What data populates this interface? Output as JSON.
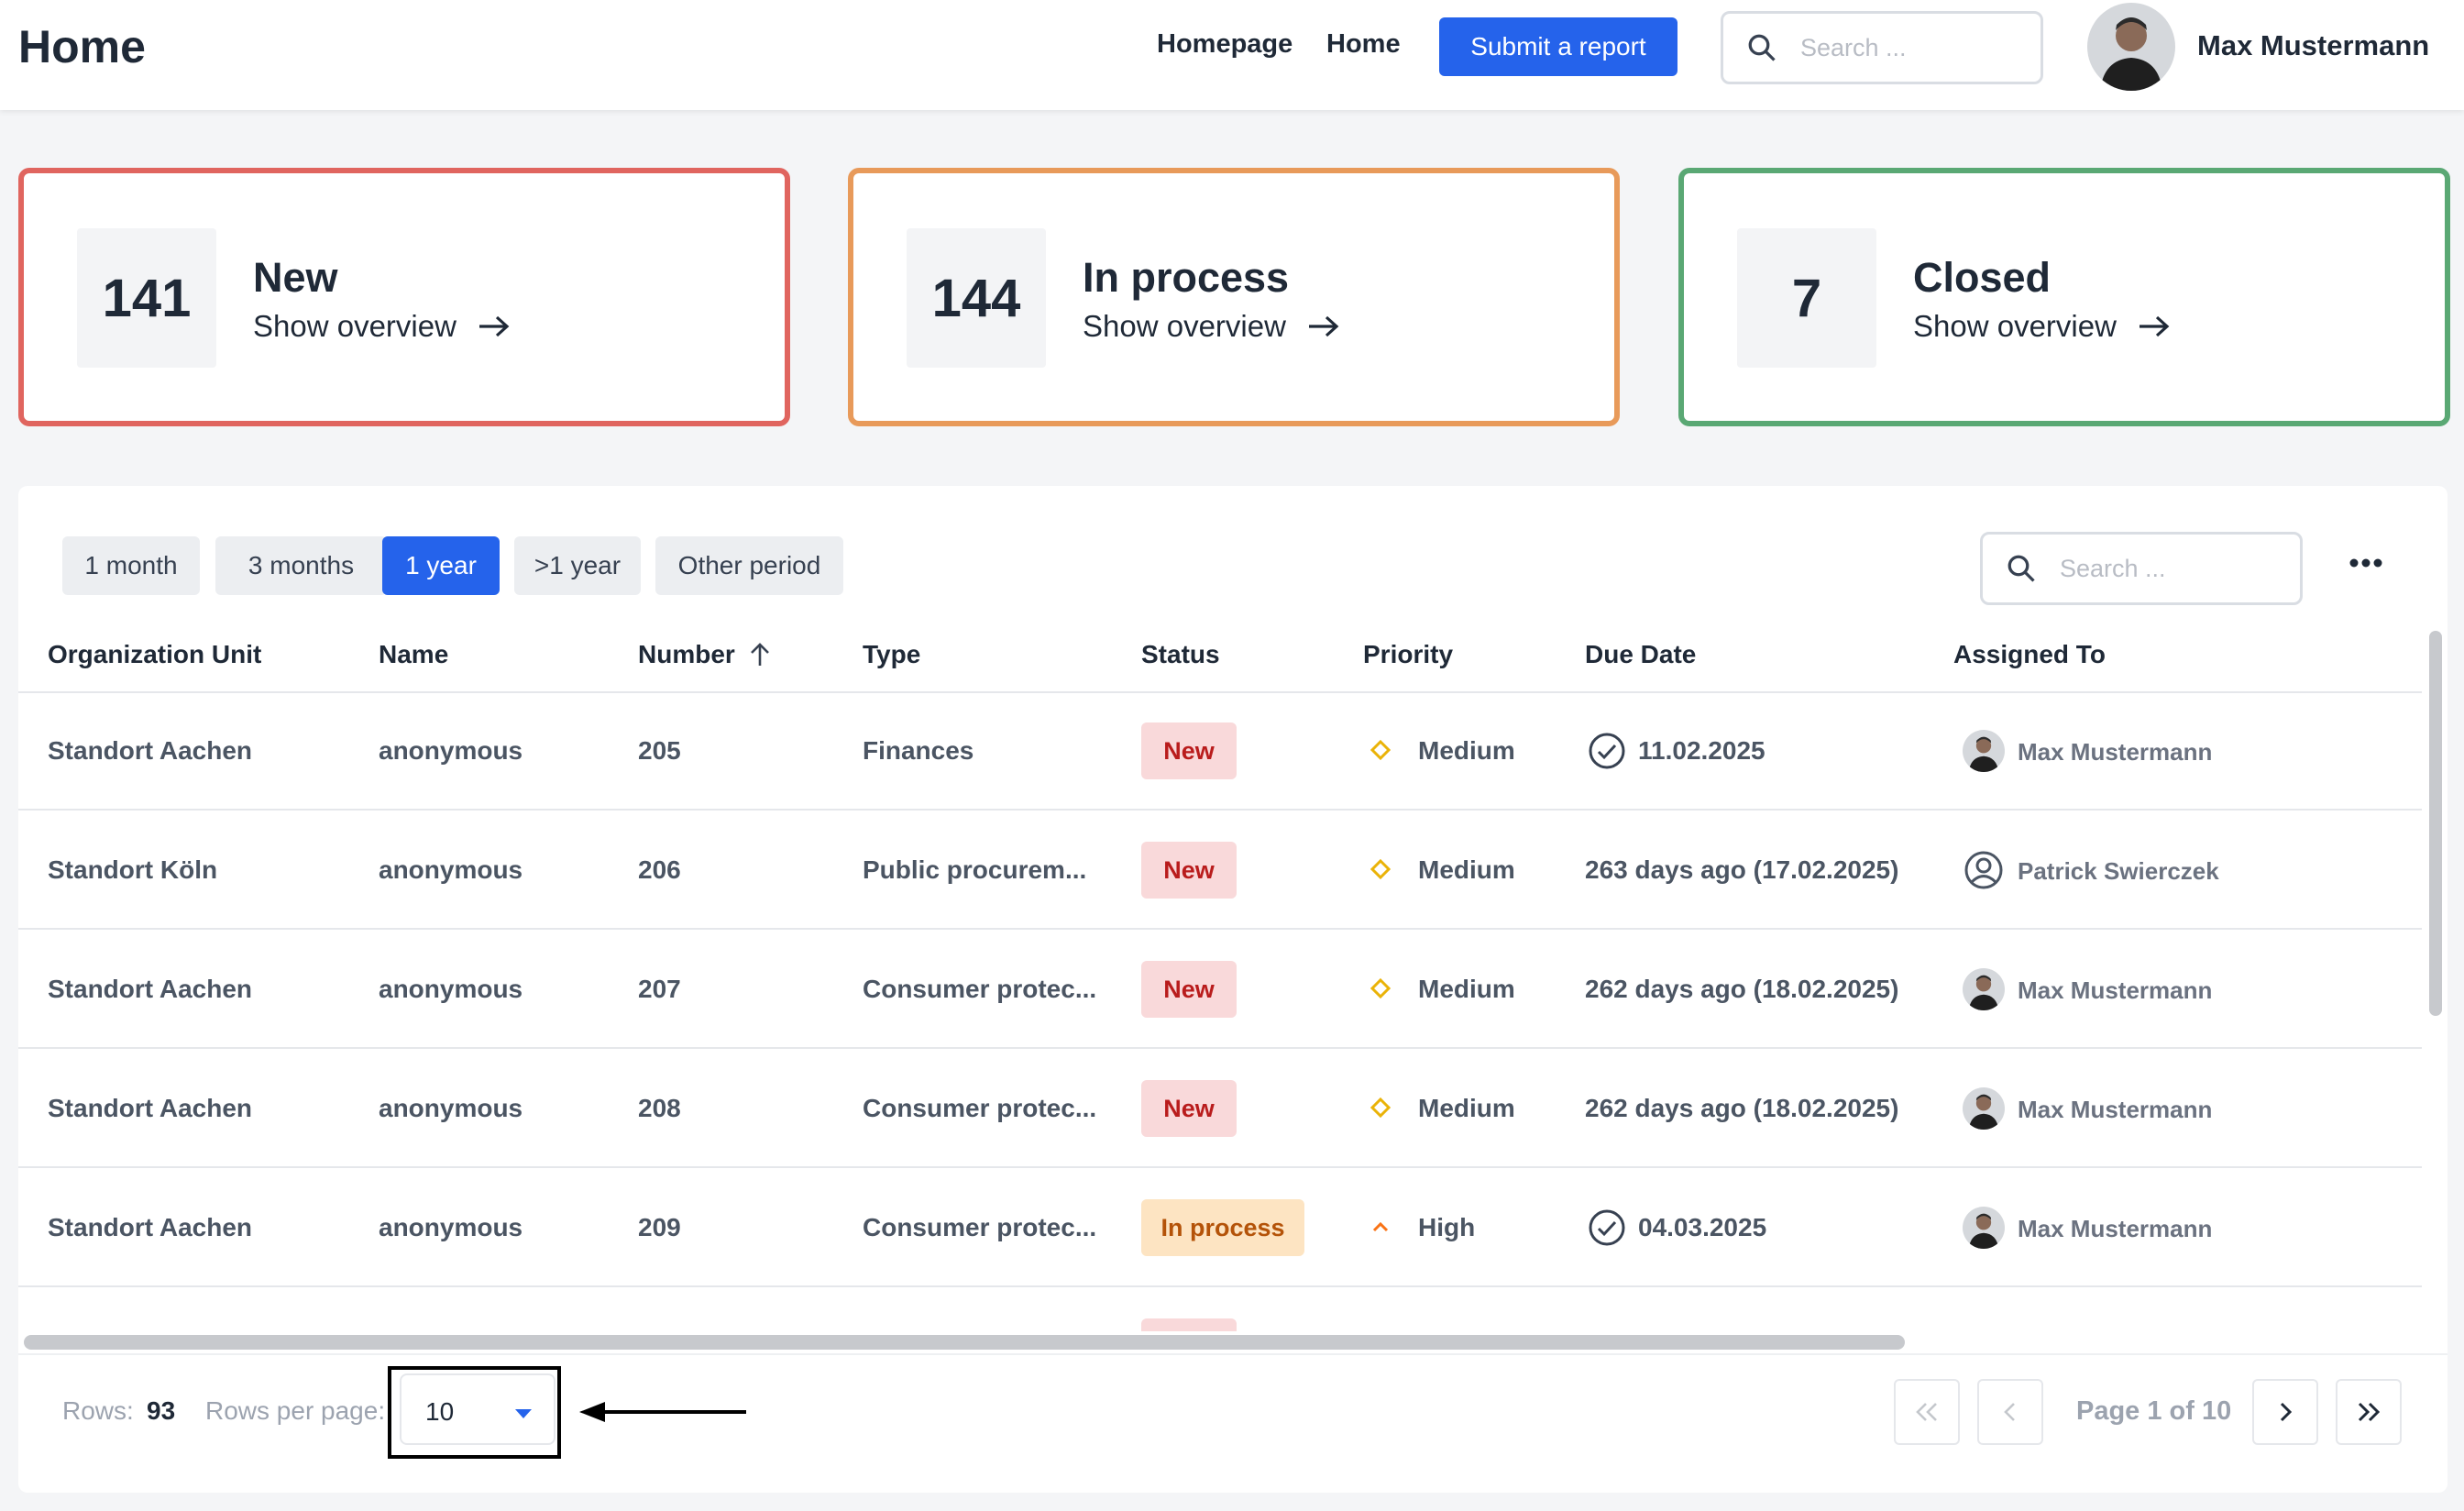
{
  "header": {
    "title": "Home",
    "nav": [
      "Homepage",
      "Home"
    ],
    "submit_label": "Submit a report",
    "search_placeholder": "Search ...",
    "user_name": "Max Mustermann"
  },
  "cards": [
    {
      "count": "141",
      "title": "New",
      "link": "Show overview",
      "border_color": "#e0655f"
    },
    {
      "count": "144",
      "title": "In process",
      "link": "Show overview",
      "border_color": "#e89a5a"
    },
    {
      "count": "7",
      "title": "Closed",
      "link": "Show overview",
      "border_color": "#5aa874"
    }
  ],
  "filters": {
    "periods": [
      "1 month",
      "3 months",
      "1 year",
      ">1 year",
      "Other period"
    ],
    "active": "1 year",
    "search_placeholder": "Search ..."
  },
  "table": {
    "columns": [
      "Organization Unit",
      "Name",
      "Number",
      "Type",
      "Status",
      "Priority",
      "Due Date",
      "Assigned To"
    ],
    "sorted_column": "Number",
    "sort_direction": "ascending",
    "rows": [
      {
        "org": "Standort Aachen",
        "name": "anonymous",
        "number": "205",
        "type": "Finances",
        "status": "New",
        "priority": "Medium",
        "due": "11.02.2025",
        "assignee": "Max Mustermann"
      },
      {
        "org": "Standort Köln",
        "name": "anonymous",
        "number": "206",
        "type": "Public procurem...",
        "status": "New",
        "priority": "Medium",
        "due": "263 days ago (17.02.2025)",
        "assignee": "Patrick Swierczek"
      },
      {
        "org": "Standort Aachen",
        "name": "anonymous",
        "number": "207",
        "type": "Consumer protec...",
        "status": "New",
        "priority": "Medium",
        "due": "262 days ago (18.02.2025)",
        "assignee": "Max Mustermann"
      },
      {
        "org": "Standort Aachen",
        "name": "anonymous",
        "number": "208",
        "type": "Consumer protec...",
        "status": "New",
        "priority": "Medium",
        "due": "262 days ago (18.02.2025)",
        "assignee": "Max Mustermann"
      },
      {
        "org": "Standort Aachen",
        "name": "anonymous",
        "number": "209",
        "type": "Consumer protec...",
        "status": "In process",
        "priority": "High",
        "due": "04.03.2025",
        "assignee": "Max Mustermann"
      }
    ]
  },
  "footer": {
    "rows_label": "Rows:",
    "rows_count": "93",
    "rpp_label": "Rows per page:",
    "rpp_value": "10",
    "page_info": "Page 1 of 10"
  },
  "colors": {
    "accent": "#2563eb",
    "medium_priority": "#eab308",
    "high_priority": "#f97316"
  },
  "icons": [
    "search-icon",
    "arrow-right-icon",
    "more-horizontal-icon",
    "sort-up-icon",
    "check-circle-icon",
    "diamond-icon",
    "chevron-up-icon",
    "user-circle-icon",
    "caret-down-icon",
    "double-chevron-left-icon",
    "chevron-left-icon",
    "chevron-right-icon",
    "double-chevron-right-icon"
  ]
}
